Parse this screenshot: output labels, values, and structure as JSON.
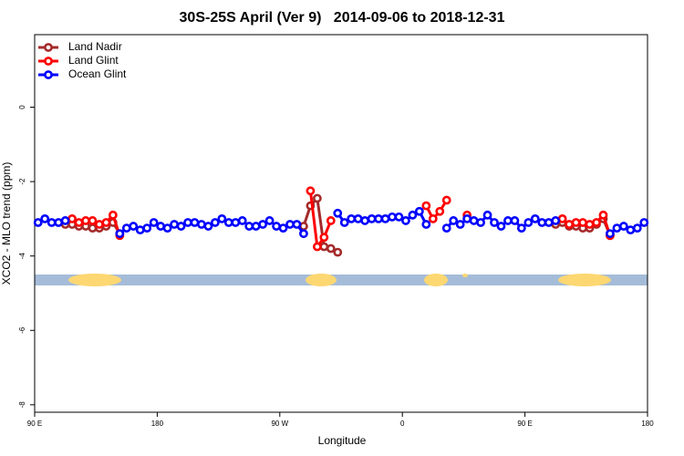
{
  "chart_data": {
    "type": "line",
    "title": "30S-25S April (Ver 9)   2014-09-06 to 2018-12-31",
    "xlabel": "Longitude",
    "ylabel": "XCO2 - MLO trend (ppm)",
    "xlim": [
      90,
      540
    ],
    "xticks": [
      {
        "value": 90,
        "label": "90 E"
      },
      {
        "value": 180,
        "label": "180"
      },
      {
        "value": 270,
        "label": "90 W"
      },
      {
        "value": 360,
        "label": "0"
      },
      {
        "value": 450,
        "label": "90 E"
      },
      {
        "value": 540,
        "label": "180"
      }
    ],
    "ylim": [
      -8.2,
      1.95
    ],
    "yticks": [
      0,
      -2,
      -4,
      -6,
      -8
    ],
    "legend": "top-left",
    "x": [
      92.5,
      97.5,
      102.5,
      107.5,
      112.5,
      117.5,
      122.5,
      127.5,
      132.5,
      137.5,
      142.5,
      147.5,
      152.5,
      157.5,
      162.5,
      167.5,
      172.5,
      177.5,
      182.5,
      187.5,
      192.5,
      197.5,
      202.5,
      207.5,
      212.5,
      217.5,
      222.5,
      227.5,
      232.5,
      237.5,
      242.5,
      247.5,
      252.5,
      257.5,
      262.5,
      267.5,
      272.5,
      277.5,
      282.5,
      287.5,
      292.5,
      297.5,
      302.5,
      307.5,
      312.5,
      317.5,
      322.5,
      327.5,
      332.5,
      337.5,
      342.5,
      347.5,
      352.5,
      357.5,
      362.5,
      367.5,
      372.5,
      377.5,
      382.5,
      387.5,
      392.5,
      397.5,
      402.5,
      407.5,
      412.5,
      417.5,
      422.5,
      427.5,
      432.5,
      437.5,
      442.5,
      447.5,
      452.5,
      457.5,
      462.5,
      467.5,
      472.5,
      477.5,
      482.5,
      487.5,
      492.5,
      497.5,
      502.5,
      507.5,
      512.5,
      517.5,
      522.5,
      527.5,
      532.5,
      537.5
    ],
    "series": [
      {
        "name": "Land Nadir",
        "color": "#a52a2a",
        "values": [
          null,
          null,
          null,
          null,
          -3.15,
          -3.15,
          -3.2,
          -3.2,
          -3.25,
          -3.25,
          -3.2,
          -3.1,
          -3.4,
          null,
          null,
          null,
          null,
          null,
          null,
          null,
          null,
          null,
          null,
          null,
          null,
          null,
          null,
          null,
          null,
          null,
          null,
          null,
          null,
          null,
          null,
          null,
          null,
          null,
          null,
          -3.2,
          -2.65,
          -2.45,
          -3.75,
          -3.8,
          -3.9,
          null,
          null,
          null,
          null,
          null,
          null,
          null,
          null,
          null,
          null,
          null,
          null,
          null,
          null,
          null,
          null,
          null,
          null,
          null,
          null,
          null,
          null,
          null,
          null,
          null,
          null,
          null,
          null,
          null,
          null,
          null,
          -3.15,
          -3.1,
          -3.2,
          -3.2,
          -3.25,
          -3.25,
          -3.15,
          -3.0,
          -3.45,
          null,
          null,
          null,
          null,
          null
        ]
      },
      {
        "name": "Land Glint",
        "color": "#ff0000",
        "values": [
          null,
          null,
          null,
          null,
          null,
          -3.0,
          -3.1,
          -3.05,
          -3.05,
          -3.15,
          -3.1,
          -2.9,
          -3.45,
          null,
          null,
          null,
          null,
          null,
          null,
          null,
          null,
          null,
          null,
          null,
          null,
          null,
          null,
          null,
          null,
          null,
          null,
          null,
          null,
          null,
          null,
          null,
          null,
          null,
          null,
          null,
          -2.25,
          -3.75,
          -3.5,
          -3.05,
          null,
          null,
          null,
          null,
          null,
          null,
          null,
          null,
          null,
          null,
          null,
          null,
          null,
          -2.65,
          -3.0,
          -2.8,
          -2.5,
          null,
          null,
          -2.9,
          null,
          null,
          null,
          null,
          null,
          null,
          null,
          null,
          null,
          null,
          null,
          null,
          null,
          -3.0,
          -3.15,
          -3.1,
          -3.1,
          -3.15,
          -3.1,
          -2.9,
          -3.45,
          null,
          null,
          null,
          null,
          null
        ]
      },
      {
        "name": "Ocean Glint",
        "color": "#0000ff",
        "values": [
          -3.1,
          -3.0,
          -3.1,
          -3.1,
          -3.05,
          null,
          null,
          null,
          null,
          null,
          null,
          null,
          -3.4,
          -3.25,
          -3.2,
          -3.3,
          -3.25,
          -3.1,
          -3.2,
          -3.25,
          -3.15,
          -3.2,
          -3.1,
          -3.1,
          -3.15,
          -3.2,
          -3.1,
          -3.0,
          -3.1,
          -3.1,
          -3.05,
          -3.2,
          -3.2,
          -3.15,
          -3.05,
          -3.2,
          -3.25,
          -3.15,
          -3.15,
          -3.4,
          null,
          null,
          null,
          null,
          -2.85,
          -3.1,
          -3.0,
          -3.0,
          -3.05,
          -3.0,
          -3.0,
          -3.0,
          -2.95,
          -2.95,
          -3.05,
          -2.9,
          -2.8,
          -3.15,
          null,
          null,
          -3.25,
          -3.05,
          -3.15,
          -3.0,
          -3.05,
          -3.1,
          -2.9,
          -3.1,
          -3.2,
          -3.05,
          -3.05,
          -3.25,
          -3.1,
          -3.0,
          -3.1,
          -3.1,
          -3.05,
          null,
          null,
          null,
          null,
          null,
          null,
          null,
          -3.4,
          -3.25,
          -3.2,
          -3.3,
          -3.25,
          -3.1
        ]
      }
    ]
  }
}
